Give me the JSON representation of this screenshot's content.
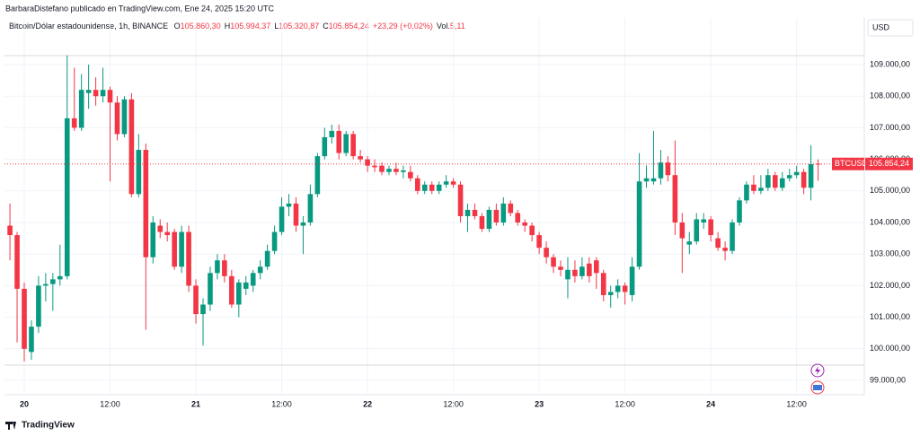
{
  "header": {
    "publisher": "BarbaraDistefano publicado en TradingView.com, Ene 24, 2025 15:20 UTC",
    "symbol": "Bitcoin/Dólar estadounidense, 1h, BINANCE",
    "legend": [
      {
        "key": "O",
        "value": "105.860,30"
      },
      {
        "key": "H",
        "value": "105.994,37"
      },
      {
        "key": "L",
        "value": "105.320,87"
      },
      {
        "key": "C",
        "value": "105.854,24"
      }
    ],
    "change": "+23,29 (+0,02%)",
    "volume_key": "Vol.",
    "volume": "5,11",
    "currency": "USD",
    "price_tag_symbol": "BTCUSD",
    "price_tag_value": "105.854,24"
  },
  "footer": {
    "brand": "TradingView"
  },
  "chart_data": {
    "type": "candlestick",
    "categories": [
      null,
      null,
      "20",
      null,
      null,
      null,
      null,
      null,
      null,
      null,
      null,
      null,
      null,
      null,
      "12:00",
      null,
      null,
      null,
      null,
      null,
      null,
      null,
      null,
      null,
      null,
      null,
      "21",
      null,
      null,
      null,
      null,
      null,
      null,
      null,
      null,
      null,
      null,
      null,
      "12:00",
      null,
      null,
      null,
      null,
      null,
      null,
      null,
      null,
      null,
      null,
      null,
      "22",
      null,
      null,
      null,
      null,
      null,
      null,
      null,
      null,
      null,
      null,
      null,
      "12:00",
      null,
      null,
      null,
      null,
      null,
      null,
      null,
      null,
      null,
      null,
      null,
      "23",
      null,
      null,
      null,
      null,
      null,
      null,
      null,
      null,
      null,
      null,
      null,
      "12:00",
      null,
      null,
      null,
      null,
      null,
      null,
      null,
      null,
      null,
      null,
      null,
      "24",
      null,
      null,
      null,
      null,
      null,
      null,
      null,
      null,
      null,
      null,
      null,
      "12:00",
      null,
      null,
      null
    ],
    "open": [
      103900,
      103600,
      101900,
      99900,
      100700,
      102000,
      102050,
      102200,
      102300,
      107300,
      107000,
      108100,
      108200,
      108000,
      108200,
      107800,
      106800,
      107900,
      104900,
      106300,
      102900,
      103900,
      103700,
      103700,
      102600,
      103700,
      102000,
      101100,
      101400,
      102400,
      102800,
      102300,
      101400,
      101900,
      102000,
      102400,
      102600,
      103100,
      103700,
      104500,
      104600,
      103900,
      104000,
      104900,
      106100,
      106700,
      106900,
      106200,
      106800,
      106100,
      106000,
      105800,
      105800,
      105600,
      105700,
      105600,
      105600,
      105400,
      105000,
      105200,
      105000,
      105200,
      105300,
      105200,
      104200,
      104400,
      104200,
      103800,
      104400,
      104000,
      104600,
      104300,
      104000,
      103900,
      103600,
      103200,
      102900,
      102600,
      102200,
      102500,
      102300,
      102700,
      102800,
      102400,
      101700,
      101800,
      102000,
      101700,
      102600,
      105300,
      105300,
      105400,
      105900,
      105500,
      104000,
      103300,
      103400,
      104000,
      104100,
      103500,
      103200,
      103100,
      104000,
      104700,
      105200,
      105000,
      105100,
      105500,
      105100,
      105400,
      105500,
      105600,
      105100,
      105860.3
    ],
    "high": [
      104600,
      103700,
      102100,
      100900,
      102300,
      102400,
      102400,
      103300,
      109300,
      108900,
      108700,
      109000,
      108600,
      108900,
      108300,
      108000,
      108000,
      108100,
      106800,
      106500,
      104200,
      104100,
      104000,
      103800,
      103900,
      103900,
      102200,
      101600,
      102600,
      103000,
      103000,
      102500,
      102200,
      102300,
      102500,
      102800,
      103300,
      103900,
      104800,
      104900,
      104800,
      104200,
      105200,
      106200,
      107000,
      107100,
      107100,
      106900,
      106900,
      106300,
      106100,
      106000,
      105900,
      105800,
      105900,
      105800,
      105800,
      105500,
      105300,
      105300,
      105300,
      105500,
      105400,
      105300,
      104600,
      104600,
      104300,
      104500,
      104600,
      104800,
      104700,
      104400,
      104100,
      104000,
      103700,
      103400,
      103000,
      102800,
      102900,
      102800,
      102900,
      102900,
      102900,
      102500,
      102000,
      102200,
      102100,
      102900,
      106200,
      105800,
      106900,
      106300,
      106100,
      106600,
      104300,
      103700,
      104300,
      104300,
      104200,
      103700,
      103400,
      104100,
      104800,
      105300,
      105500,
      105500,
      105700,
      105600,
      105600,
      105700,
      105800,
      105700,
      106450,
      105994.37
    ],
    "low": [
      102800,
      100200,
      99600,
      99650,
      100500,
      101500,
      101200,
      102000,
      102200,
      106900,
      106900,
      107600,
      107700,
      107800,
      105300,
      106600,
      106700,
      104800,
      104800,
      100600,
      102700,
      103500,
      103400,
      102500,
      102400,
      101800,
      100800,
      100100,
      101200,
      102200,
      102100,
      101300,
      101000,
      101700,
      101800,
      102200,
      102500,
      103000,
      103600,
      104200,
      103700,
      103000,
      103900,
      104800,
      106000,
      106500,
      106000,
      106100,
      106000,
      105900,
      105600,
      105600,
      105500,
      105500,
      105500,
      105400,
      105300,
      104900,
      104900,
      104900,
      104900,
      105100,
      105100,
      104000,
      103700,
      104100,
      103700,
      103700,
      103900,
      103900,
      104200,
      103900,
      103700,
      103400,
      103000,
      102700,
      102400,
      102300,
      101600,
      102100,
      102200,
      102100,
      101900,
      101500,
      101300,
      101600,
      101400,
      101500,
      102500,
      105100,
      105200,
      105200,
      105300,
      103600,
      102400,
      103000,
      103300,
      103800,
      103400,
      103100,
      102800,
      103000,
      103900,
      104600,
      104900,
      104900,
      105000,
      105000,
      105000,
      105300,
      105400,
      104900,
      104700,
      105320.87
    ],
    "close": [
      103600,
      101900,
      100000,
      100700,
      102000,
      102050,
      102200,
      102300,
      107300,
      107000,
      108200,
      108200,
      108000,
      108200,
      107800,
      106800,
      107900,
      104900,
      106300,
      102900,
      104000,
      103700,
      103600,
      102600,
      103700,
      102000,
      101100,
      101400,
      102400,
      102800,
      102300,
      101400,
      102100,
      102100,
      102400,
      102600,
      103100,
      103700,
      104500,
      104600,
      103900,
      104000,
      104900,
      106100,
      106700,
      106900,
      106200,
      106800,
      106100,
      106000,
      105800,
      105750,
      105600,
      105700,
      105600,
      105650,
      105400,
      105000,
      105200,
      105000,
      105200,
      105300,
      105200,
      104200,
      104400,
      104200,
      103800,
      104400,
      104000,
      104600,
      104300,
      104000,
      103900,
      103600,
      103200,
      102900,
      102600,
      102500,
      102500,
      102300,
      102600,
      102300,
      102400,
      101700,
      101800,
      102000,
      101800,
      102600,
      105300,
      105400,
      105400,
      105900,
      105500,
      104000,
      103500,
      103400,
      104100,
      104100,
      103600,
      103200,
      103100,
      104000,
      104700,
      105200,
      105000,
      105100,
      105500,
      105100,
      105400,
      105500,
      105600,
      105100,
      105850,
      105854.24
    ],
    "up_color": "#089981",
    "down_color": "#f23645",
    "ylim": [
      98545,
      109910
    ],
    "yticks": [
      {
        "value": 99000,
        "label": "99.000,00"
      },
      {
        "value": 100000,
        "label": "100.000,00"
      },
      {
        "value": 101000,
        "label": "101.000,00"
      },
      {
        "value": 102000,
        "label": "102.000,00"
      },
      {
        "value": 103000,
        "label": "103.000,00"
      },
      {
        "value": 104000,
        "label": "104.000,00"
      },
      {
        "value": 105000,
        "label": "105.000,00"
      },
      {
        "value": 106000,
        "label": "106.000,00"
      },
      {
        "value": 107000,
        "label": "107.000,00"
      },
      {
        "value": 108000,
        "label": "108.000,00"
      },
      {
        "value": 109000,
        "label": "109.000,00"
      }
    ],
    "grid": true
  }
}
